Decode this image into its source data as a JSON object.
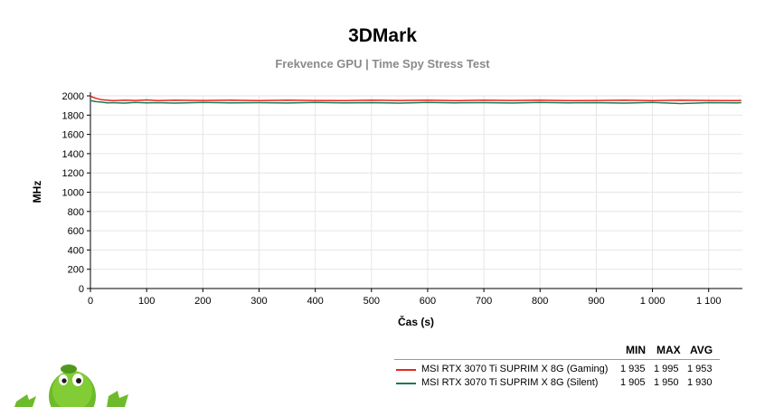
{
  "colors": {
    "gaming": "#e8251f",
    "silent": "#1e7a4e",
    "grid": "#e6e6e6"
  },
  "chart_data": {
    "type": "line",
    "title": "3DMark",
    "subtitle": "Frekvence GPU | Time Spy Stress Test",
    "xlabel": "Čas (s)",
    "ylabel": "MHz",
    "xlim": [
      0,
      1160
    ],
    "ylim": [
      0,
      2000
    ],
    "x_ticks": [
      0,
      100,
      200,
      300,
      400,
      500,
      600,
      700,
      800,
      900,
      1000,
      1100
    ],
    "x_tick_labels": [
      "0",
      "100",
      "200",
      "300",
      "400",
      "500",
      "600",
      "700",
      "800",
      "900",
      "1 000",
      "1 100"
    ],
    "y_ticks": [
      0,
      200,
      400,
      600,
      800,
      1000,
      1200,
      1400,
      1600,
      1800,
      2000
    ],
    "y_tick_labels": [
      "0",
      "200",
      "400",
      "600",
      "800",
      "1000",
      "1200",
      "1400",
      "1600",
      "1800",
      "2000"
    ],
    "grid": true,
    "legend_position": "bottom-right",
    "series": [
      {
        "name": "MSI RTX 3070 Ti SUPRIM X 8G (Gaming)",
        "color": "#e8251f",
        "x": [
          0,
          10,
          20,
          30,
          40,
          60,
          80,
          100,
          120,
          150,
          200,
          250,
          300,
          350,
          400,
          450,
          500,
          550,
          600,
          650,
          700,
          750,
          800,
          850,
          900,
          950,
          1000,
          1050,
          1100,
          1150,
          1158
        ],
        "values": [
          1995,
          1975,
          1960,
          1955,
          1950,
          1955,
          1952,
          1958,
          1950,
          1955,
          1952,
          1955,
          1950,
          1955,
          1952,
          1950,
          1955,
          1952,
          1955,
          1950,
          1955,
          1952,
          1955,
          1950,
          1952,
          1955,
          1950,
          1955,
          1952,
          1950,
          1953
        ],
        "min": "1 935",
        "max": "1 995",
        "avg": "1 953"
      },
      {
        "name": "MSI RTX 3070 Ti SUPRIM X 8G (Silent)",
        "color": "#1e7a4e",
        "x": [
          0,
          10,
          20,
          30,
          40,
          60,
          80,
          100,
          120,
          150,
          200,
          250,
          300,
          350,
          400,
          450,
          500,
          550,
          600,
          650,
          700,
          750,
          800,
          850,
          900,
          950,
          1000,
          1050,
          1100,
          1150,
          1158
        ],
        "values": [
          1950,
          1940,
          1935,
          1928,
          1930,
          1925,
          1932,
          1928,
          1930,
          1925,
          1932,
          1928,
          1930,
          1926,
          1932,
          1928,
          1930,
          1925,
          1932,
          1928,
          1930,
          1926,
          1932,
          1928,
          1930,
          1925,
          1932,
          1920,
          1930,
          1928,
          1930
        ],
        "min": "1 905",
        "max": "1 950",
        "avg": "1 930"
      }
    ]
  },
  "legend": {
    "headers": {
      "min": "MIN",
      "max": "MAX",
      "avg": "AVG"
    }
  }
}
